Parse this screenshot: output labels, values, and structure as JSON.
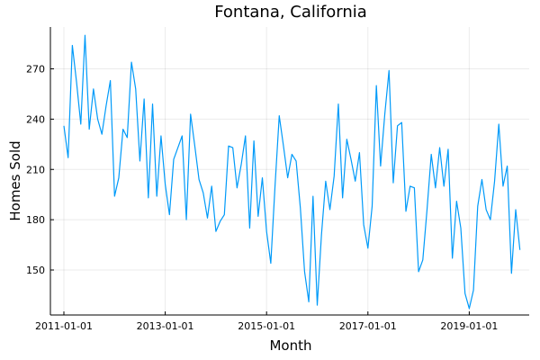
{
  "chart_data": {
    "type": "line",
    "title": "Fontana, California",
    "xlabel": "Month",
    "ylabel": "Homes Sold",
    "x_start": "2011-01",
    "x_end": "2019-12",
    "x_ticks": [
      "2011-01-01",
      "2013-01-01",
      "2015-01-01",
      "2017-01-01",
      "2019-01-01"
    ],
    "y_ticks": [
      150,
      180,
      210,
      240,
      270
    ],
    "ylim": [
      126,
      294
    ],
    "grid": true,
    "line_color": "#009af9",
    "series": [
      {
        "values": [
          236,
          217,
          284,
          262,
          237,
          290,
          234,
          258,
          240,
          231,
          248,
          263,
          194,
          205,
          234,
          229,
          274,
          258,
          215,
          252,
          193,
          249,
          194,
          230,
          201,
          183,
          216,
          223,
          230,
          180,
          243,
          224,
          204,
          196,
          181,
          200,
          173,
          179,
          183,
          224,
          223,
          199,
          213,
          230,
          175,
          227,
          182,
          205,
          173,
          154,
          200,
          242,
          224,
          205,
          219,
          215,
          187,
          149,
          131,
          194,
          129,
          171,
          203,
          186,
          206,
          249,
          193,
          228,
          216,
          203,
          220,
          177,
          163,
          188,
          260,
          212,
          243,
          269,
          202,
          236,
          238,
          185,
          200,
          199,
          149,
          156,
          186,
          219,
          199,
          223,
          200,
          222,
          157,
          191,
          175,
          136,
          127,
          138,
          188,
          204,
          186,
          180,
          203,
          237,
          200,
          212,
          148,
          186,
          162
        ]
      }
    ]
  }
}
